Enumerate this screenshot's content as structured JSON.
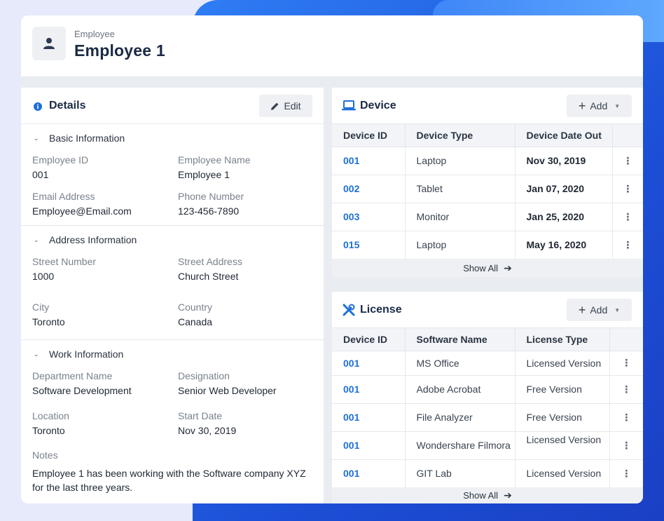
{
  "header": {
    "subtitle": "Employee",
    "title": "Employee 1"
  },
  "details": {
    "title": "Details",
    "edit_label": "Edit",
    "basic": {
      "title": "Basic Information",
      "employee_id_label": "Employee ID",
      "employee_id": "001",
      "employee_name_label": "Employee Name",
      "employee_name": "Employee 1",
      "email_label": "Email Address",
      "email": "Employee@Email.com",
      "phone_label": "Phone Number",
      "phone": "123-456-7890"
    },
    "address": {
      "title": "Address Information",
      "street_number_label": "Street Number",
      "street_number": "1000",
      "street_address_label": "Street Address",
      "street_address": "Church Street",
      "city_label": "City",
      "city": "Toronto",
      "country_label": "Country",
      "country": "Canada"
    },
    "work": {
      "title": "Work Information",
      "department_label": "Department Name",
      "department": "Software Development",
      "designation_label": "Designation",
      "designation": "Senior Web Developer",
      "location_label": "Location",
      "location": "Toronto",
      "start_date_label": "Start Date",
      "start_date": "Nov 30, 2019",
      "notes_label": "Notes",
      "notes": "Employee 1 has been working with the Software company XYZ for the last three years."
    }
  },
  "device": {
    "title": "Device",
    "add_label": "Add",
    "columns": [
      "Device ID",
      "Device Type",
      "Device Date Out"
    ],
    "rows": [
      {
        "id": "001",
        "type": "Laptop",
        "date": "Nov 30, 2019"
      },
      {
        "id": "002",
        "type": "Tablet",
        "date": "Jan 07, 2020"
      },
      {
        "id": "003",
        "type": "Monitor",
        "date": "Jan 25, 2020"
      },
      {
        "id": "015",
        "type": "Laptop",
        "date": "May 16, 2020"
      }
    ],
    "show_all": "Show All"
  },
  "license": {
    "title": "License",
    "add_label": "Add",
    "columns": [
      "Device ID",
      "Software Name",
      "License Type"
    ],
    "rows": [
      {
        "id": "001",
        "software": "MS Office",
        "type": "Licensed Version"
      },
      {
        "id": "001",
        "software": "Adobe Acrobat",
        "type": "Free Version"
      },
      {
        "id": "001",
        "software": "File Analyzer",
        "type": "Free Version"
      },
      {
        "id": "001",
        "software": "Wondershare Filmora",
        "type": "Licensed Version"
      },
      {
        "id": "001",
        "software": "GIT Lab",
        "type": "Licensed Version"
      }
    ],
    "show_all": "Show All"
  },
  "colors": {
    "accent": "#1e6fd9",
    "background_blue": "#1c4fd6",
    "title_text": "#1b2a44"
  },
  "icons": {
    "avatar": "user-icon",
    "details": "info-icon",
    "edit": "pencil-icon",
    "device": "laptop-icon",
    "license": "tools-icon",
    "add": "plus-icon",
    "dropdown": "caret-down-icon",
    "row_menu": "kebab-icon",
    "show_all": "arrow-right-icon"
  }
}
